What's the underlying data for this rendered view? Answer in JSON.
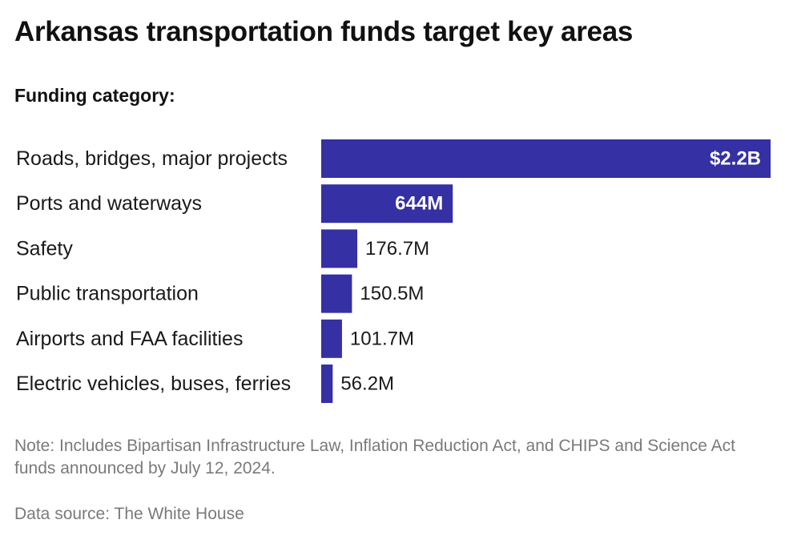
{
  "title": "Arkansas transportation funds target key areas",
  "subtitle": "Funding category:",
  "note": "Note: Includes Bipartisan Infrastructure Law, Inflation Reduction Act, and CHIPS and Science Act funds announced by July 12, 2024.",
  "source": "Data source: The White House",
  "colors": {
    "bar": "#3530a3"
  },
  "chart_data": {
    "type": "bar",
    "orientation": "horizontal",
    "title": "Arkansas transportation funds target key areas",
    "categories": [
      "Roads, bridges, major projects",
      "Ports and waterways",
      "Safety",
      "Public transportation",
      "Airports and FAA facilities",
      "Electric vehicles, buses, ferries"
    ],
    "values": [
      2200,
      644,
      176.7,
      150.5,
      101.7,
      56.2
    ],
    "unit": "millions of dollars",
    "value_labels": [
      "$2.2B",
      "644M",
      "176.7M",
      "150.5M",
      "101.7M",
      "56.2M"
    ],
    "xlim": [
      0,
      2200
    ],
    "grid": false,
    "legend": "none"
  }
}
